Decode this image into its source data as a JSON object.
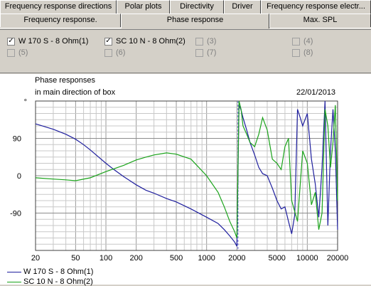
{
  "tabs_top": [
    {
      "label": "Frequency response directions",
      "w": 0
    },
    {
      "label": "Polar plots",
      "w": 0
    },
    {
      "label": "Directivity",
      "w": 0
    },
    {
      "label": "Driver",
      "w": 0
    },
    {
      "label": "Frequency response electr...",
      "w": 0
    }
  ],
  "tabs_bottom": [
    {
      "label": "Frequency response.",
      "active": false
    },
    {
      "label": "Phase response",
      "active": true
    },
    {
      "label": "Max. SPL",
      "active": false
    }
  ],
  "series_checks": [
    {
      "label": "W 170 S - 8 Ohm(1)",
      "checked": true,
      "enabled": true
    },
    {
      "label": "SC 10 N - 8 Ohm(2)",
      "checked": true,
      "enabled": true
    },
    {
      "label": "(3)",
      "checked": false,
      "enabled": false
    },
    {
      "label": "(4)",
      "checked": false,
      "enabled": false
    },
    {
      "label": "(5)",
      "checked": false,
      "enabled": false
    },
    {
      "label": "(6)",
      "checked": false,
      "enabled": false
    },
    {
      "label": "(7)",
      "checked": false,
      "enabled": false
    },
    {
      "label": "(8)",
      "checked": false,
      "enabled": false
    }
  ],
  "chart_header": {
    "line1": "Phase responses",
    "line2": "in main direction of box",
    "date": "22/01/2013",
    "y_top_marker": "°"
  },
  "chart_data": {
    "type": "line",
    "title": "Phase responses",
    "subtitle": "in main direction of box",
    "xscale": "log",
    "xlim": [
      20,
      20000
    ],
    "ylim": [
      -180,
      180
    ],
    "xticks": [
      "20",
      "50",
      "100",
      "200",
      "500",
      "1000",
      "2000",
      "5000",
      "10000",
      "20000"
    ],
    "yticks": [
      "90",
      "0",
      "-90"
    ],
    "grid": true,
    "legend_placement": "bottom-left",
    "series": [
      {
        "name": "W 170 S - 8 Ohm(1)",
        "color": "#1f1f9e",
        "x": [
          20,
          30,
          40,
          50,
          60,
          70,
          80,
          100,
          120,
          150,
          200,
          250,
          300,
          400,
          500,
          700,
          1000,
          1300,
          1500,
          1700,
          1900,
          2000,
          2100,
          2200,
          2300,
          2500,
          2700,
          3000,
          3300,
          3600,
          4000,
          4500,
          5000,
          5500,
          6000,
          6500,
          7000,
          7500,
          8000,
          8500,
          9000,
          10000,
          11000,
          12000,
          13000,
          14000,
          15000,
          16000,
          17000,
          18000,
          19000,
          20000
        ],
        "y": [
          125,
          112,
          100,
          88,
          75,
          62,
          50,
          30,
          15,
          -2,
          -22,
          -35,
          -42,
          -55,
          -63,
          -80,
          -100,
          -115,
          -130,
          -145,
          -160,
          -170,
          170,
          158,
          140,
          110,
          80,
          50,
          20,
          5,
          0,
          -30,
          -60,
          -80,
          -75,
          -110,
          -140,
          -95,
          160,
          140,
          120,
          150,
          40,
          -20,
          -100,
          20,
          180,
          -120,
          60,
          160,
          60,
          -130
        ]
      },
      {
        "name": "SC 10 N - 8 Ohm(2)",
        "color": "#1aa31a",
        "x": [
          20,
          30,
          40,
          50,
          70,
          100,
          150,
          200,
          250,
          300,
          400,
          500,
          700,
          1000,
          1300,
          1500,
          1700,
          1900,
          2000,
          2100,
          2200,
          2300,
          2500,
          2700,
          3000,
          3300,
          3600,
          4000,
          4500,
          5000,
          5500,
          6000,
          6500,
          7000,
          8000,
          9000,
          10000,
          11000,
          12000,
          13000,
          14000,
          15000,
          16000,
          17000,
          18000,
          19000,
          20000
        ],
        "y": [
          -5,
          -8,
          -10,
          -12,
          -5,
          10,
          25,
          38,
          45,
          50,
          55,
          52,
          40,
          0,
          -40,
          -75,
          -110,
          -135,
          -150,
          180,
          160,
          120,
          100,
          80,
          70,
          100,
          140,
          110,
          40,
          30,
          15,
          70,
          90,
          -60,
          -110,
          60,
          30,
          -70,
          -40,
          -130,
          -90,
          160,
          120,
          20,
          80,
          170,
          -60
        ]
      }
    ]
  }
}
